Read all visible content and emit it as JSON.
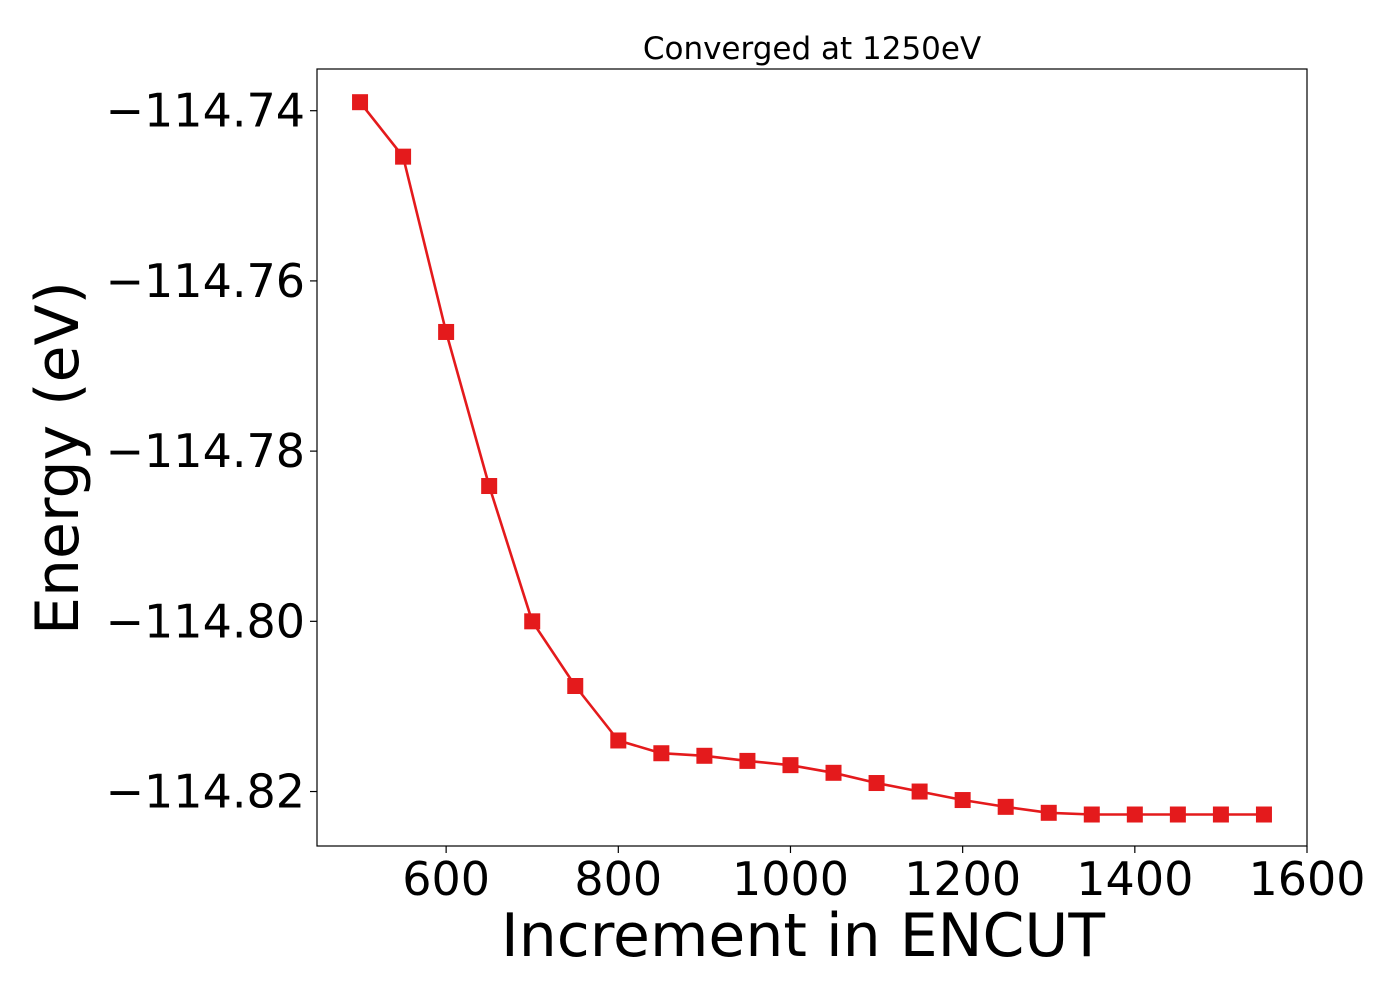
{
  "chart_data": {
    "type": "line",
    "title": "Converged at 1250eV",
    "xlabel": "Increment in ENCUT",
    "ylabel": "Energy (eV)",
    "xlim": [
      450,
      1600
    ],
    "ylim": [
      -114.8264,
      -114.7351
    ],
    "x_ticks": [
      600,
      800,
      1000,
      1200,
      1400,
      1600
    ],
    "x_tick_labels": [
      "600",
      "800",
      "1000",
      "1200",
      "1400",
      "1600"
    ],
    "y_ticks": [
      -114.74,
      -114.76,
      -114.78,
      -114.8,
      -114.82
    ],
    "y_tick_labels": [
      "−114.74",
      "−114.76",
      "−114.78",
      "−114.80",
      "−114.82"
    ],
    "grid": false,
    "series": [
      {
        "color": "#e41a1c",
        "marker": "square",
        "x": [
          500,
          550,
          600,
          650,
          700,
          750,
          800,
          850,
          900,
          950,
          1000,
          1050,
          1100,
          1150,
          1200,
          1250,
          1300,
          1350,
          1400,
          1450,
          1500,
          1550
        ],
        "y": [
          -114.739,
          -114.7454,
          -114.766,
          -114.7841,
          -114.8,
          -114.8076,
          -114.814,
          -114.8155,
          -114.8158,
          -114.8164,
          -114.8169,
          -114.8178,
          -114.819,
          -114.82,
          -114.821,
          -114.8218,
          -114.8225,
          -114.8227,
          -114.8227,
          -114.8227,
          -114.8227,
          -114.8227
        ]
      }
    ]
  }
}
